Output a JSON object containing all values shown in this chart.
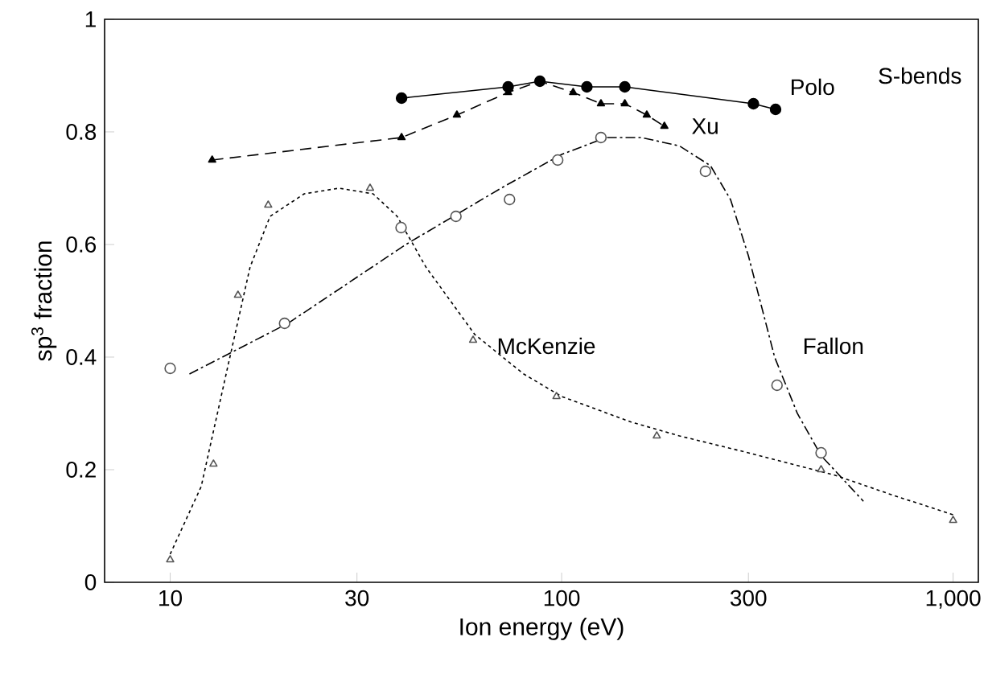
{
  "chart_data": {
    "type": "line",
    "xlabel": "Ion energy (eV)",
    "ylabel": "sp$^{3}$ fraction",
    "log": "x",
    "xlim": [
      6.8,
      1160
    ],
    "ylim": [
      0,
      1
    ],
    "xticks": [
      10,
      30,
      100,
      300,
      {
        "value": 1000,
        "label": "1,000"
      }
    ],
    "yticks": [
      0,
      0.2,
      0.4,
      0.6,
      0.8,
      1
    ],
    "annotations": [
      "S-bends"
    ],
    "series": [
      {
        "name": "Polo",
        "color": "#000000",
        "marker": "circle",
        "line_style": "solid",
        "x": [
          39,
          73,
          88,
          116,
          145,
          309,
          352
        ],
        "values": [
          0.86,
          0.88,
          0.89,
          0.88,
          0.88,
          0.85,
          0.84
        ]
      },
      {
        "name": "Xu",
        "color": "#000000",
        "marker": "triangle",
        "line_style": "dashed",
        "x": [
          12.8,
          39,
          54,
          73,
          88,
          107,
          126,
          145,
          165,
          183
        ],
        "values": [
          0.75,
          0.79,
          0.83,
          0.87,
          0.89,
          0.87,
          0.85,
          0.85,
          0.83,
          0.81
        ]
      },
      {
        "name": "McKenzie",
        "type": "scatter",
        "color": "#555555",
        "marker": "triangle",
        "x": [
          10,
          12.9,
          14.9,
          17.8,
          32.4,
          59.4,
          97,
          175,
          460,
          1000
        ],
        "values": [
          0.04,
          0.21,
          0.51,
          0.67,
          0.7,
          0.43,
          0.33,
          0.26,
          0.2,
          0.11
        ]
      },
      {
        "color": "#000000",
        "line_style": "dotted",
        "x": [
          10,
          12,
          14,
          16,
          18,
          22,
          27,
          33,
          38,
          45,
          60,
          80,
          100,
          150,
          200,
          300,
          500,
          700,
          1000
        ],
        "values": [
          0.05,
          0.17,
          0.38,
          0.56,
          0.65,
          0.69,
          0.7,
          0.69,
          0.65,
          0.56,
          0.44,
          0.37,
          0.33,
          0.285,
          0.26,
          0.23,
          0.19,
          0.155,
          0.12
        ]
      },
      {
        "name": "Fallon",
        "type": "scatter",
        "color": "#555555",
        "marker": "circle",
        "x": [
          10,
          19.6,
          38.9,
          53.7,
          73.6,
          97.7,
          126,
          233,
          355,
          460
        ],
        "values": [
          0.38,
          0.46,
          0.63,
          0.65,
          0.68,
          0.75,
          0.79,
          0.73,
          0.35,
          0.23
        ]
      },
      {
        "color": "#000000",
        "line_style": "dashdot",
        "x": [
          11.2,
          20,
          40,
          70,
          100,
          130,
          160,
          200,
          240,
          270,
          300,
          350,
          400,
          460,
          590
        ],
        "values": [
          0.37,
          0.46,
          0.6,
          0.7,
          0.76,
          0.79,
          0.79,
          0.775,
          0.74,
          0.68,
          0.58,
          0.4,
          0.3,
          0.225,
          0.144
        ]
      }
    ]
  }
}
